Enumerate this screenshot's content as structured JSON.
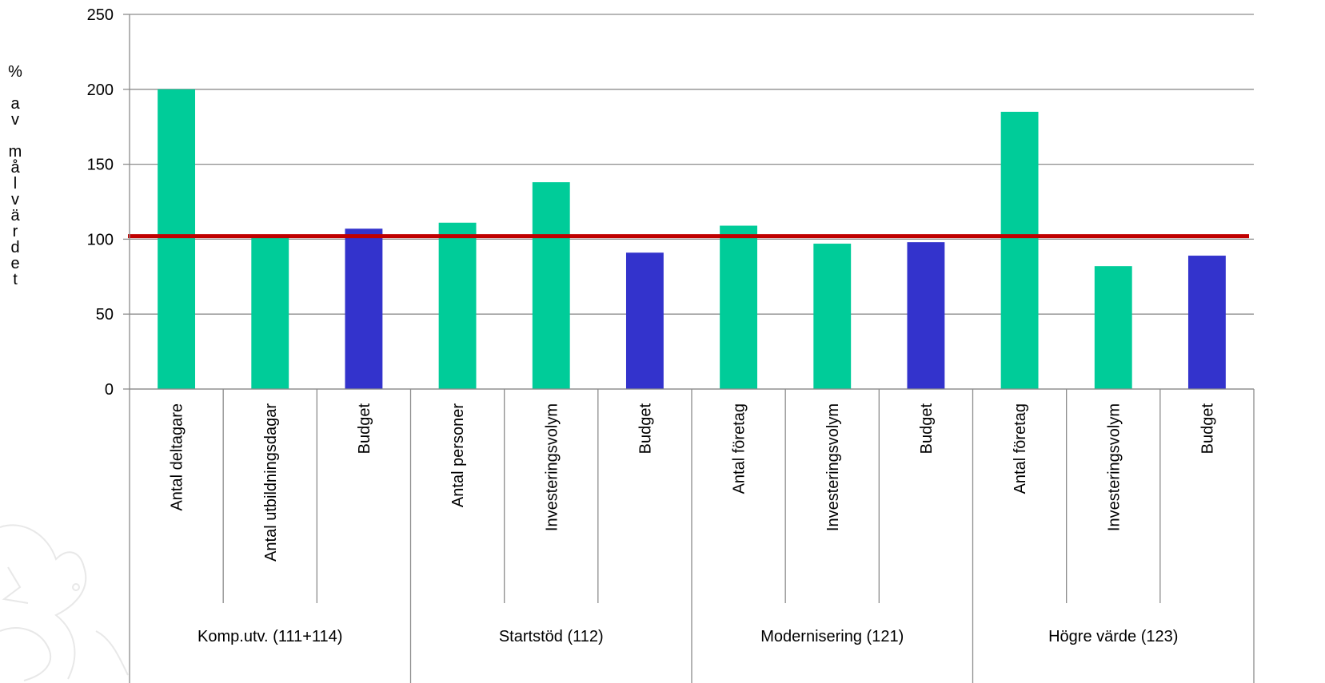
{
  "chart_data": {
    "type": "bar",
    "ylabel": "%\n\na\nv\n\nm\nå\nl\nv\nä\nr\nd\ne\nt",
    "ylim": [
      0,
      250
    ],
    "yticks": [
      0,
      50,
      100,
      150,
      200,
      250
    ],
    "grid": true,
    "reference_line": {
      "value": 102,
      "color": "#c00000"
    },
    "colors": {
      "indicator": "#00cc99",
      "budget": "#3333cc"
    },
    "groups": [
      {
        "label": "Komp.utv. (111+114)",
        "bars": [
          {
            "label": "Antal deltagare",
            "value": 200,
            "kind": "indicator"
          },
          {
            "label": "Antal utbildningsdagar",
            "value": 101,
            "kind": "indicator"
          },
          {
            "label": "Budget",
            "value": 107,
            "kind": "budget"
          }
        ]
      },
      {
        "label": "Startstöd (112)",
        "bars": [
          {
            "label": "Antal personer",
            "value": 111,
            "kind": "indicator"
          },
          {
            "label": "Investeringsvolym",
            "value": 138,
            "kind": "indicator"
          },
          {
            "label": "Budget",
            "value": 91,
            "kind": "budget"
          }
        ]
      },
      {
        "label": "Modernisering (121)",
        "bars": [
          {
            "label": "Antal företag",
            "value": 109,
            "kind": "indicator"
          },
          {
            "label": "Investeringsvolym",
            "value": 97,
            "kind": "indicator"
          },
          {
            "label": "Budget",
            "value": 98,
            "kind": "budget"
          }
        ]
      },
      {
        "label": "Högre värde (123)",
        "bars": [
          {
            "label": "Antal företag",
            "value": 185,
            "kind": "indicator"
          },
          {
            "label": "Investeringsvolym",
            "value": 82,
            "kind": "indicator"
          },
          {
            "label": "Budget",
            "value": 89,
            "kind": "budget"
          }
        ]
      }
    ]
  }
}
